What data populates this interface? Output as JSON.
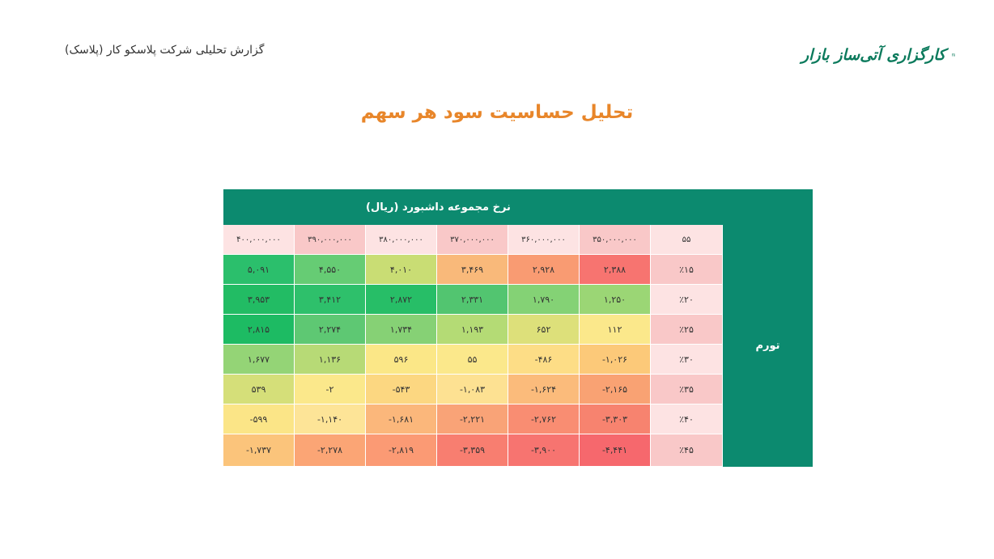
{
  "header": {
    "report_title": "گزارش تحلیلی شرکت پلاسکو کار (پلاسک)",
    "logo_text": "کارگزاری آتی‌ساز بازار"
  },
  "heading": "تحلیل حساسیت سود هر سهم",
  "table": {
    "column_group_label": "نرخ مجموعه داشبورد (ریال)",
    "row_group_label": "تورم",
    "corner_label": "۵۵",
    "columns": [
      "۴۰۰,۰۰۰,۰۰۰",
      "۳۹۰,۰۰۰,۰۰۰",
      "۳۸۰,۰۰۰,۰۰۰",
      "۳۷۰,۰۰۰,۰۰۰",
      "۳۶۰,۰۰۰,۰۰۰",
      "۳۵۰,۰۰۰,۰۰۰"
    ],
    "column_colors": [
      "#fde3e3",
      "#f9c8c8",
      "#fde3e3",
      "#f9c8c8",
      "#fde3e3",
      "#f9c8c8"
    ],
    "rows": [
      {
        "label": "٪۱۵",
        "values": [
          "۵,۰۹۱",
          "۴,۵۵۰",
          "۴,۰۱۰",
          "۳,۴۶۹",
          "۲,۹۲۸",
          "۲,۳۸۸"
        ],
        "colors": [
          "#2bbf6c",
          "#66cc74",
          "#c9dd74",
          "#f9b97a",
          "#f99b72",
          "#f77470"
        ],
        "label_color": "#f9c8c8"
      },
      {
        "label": "٪۲۰",
        "values": [
          "۳,۹۵۳",
          "۳,۴۱۲",
          "۲,۸۷۲",
          "۲,۳۳۱",
          "۱,۷۹۰",
          "۱,۲۵۰"
        ],
        "colors": [
          "#22bc64",
          "#2ec06b",
          "#27be67",
          "#52c570",
          "#84d275",
          "#9bd675"
        ],
        "label_color": "#fde3e3"
      },
      {
        "label": "٪۲۵",
        "values": [
          "۲,۸۱۵",
          "۲,۲۷۴",
          "۱,۷۳۴",
          "۱,۱۹۳",
          "۶۵۲",
          "۱۱۲"
        ],
        "colors": [
          "#1dbb63",
          "#5ec873",
          "#86d175",
          "#b4db75",
          "#dde07a",
          "#fbe88b"
        ],
        "label_color": "#f9c8c8"
      },
      {
        "label": "٪۳۰",
        "values": [
          "۱,۶۷۷",
          "۱,۱۳۶",
          "۵۹۶",
          "۵۵",
          "-۴۸۶",
          "-۱,۰۲۶"
        ],
        "colors": [
          "#94d476",
          "#b7da76",
          "#fbe787",
          "#fbe88b",
          "#fddd86",
          "#fcc979"
        ],
        "label_color": "#fde3e3"
      },
      {
        "label": "٪۳۵",
        "values": [
          "۵۳۹",
          "-۲",
          "-۵۴۳",
          "-۱,۰۸۳",
          "-۱,۶۲۴",
          "-۲,۱۶۵"
        ],
        "colors": [
          "#d5df79",
          "#fbe88b",
          "#fcd781",
          "#fde192",
          "#fbbb7b",
          "#f9a273"
        ],
        "label_color": "#f9c8c8"
      },
      {
        "label": "٪۴۰",
        "values": [
          "-۵۹۹",
          "-۱,۱۴۰",
          "-۱,۶۸۱",
          "-۲,۲۲۱",
          "-۲,۷۶۲",
          "-۳,۳۰۳"
        ],
        "colors": [
          "#fbe587",
          "#fde497",
          "#fbb77b",
          "#f9a377",
          "#f98d72",
          "#f7836f"
        ],
        "label_color": "#fde3e3"
      },
      {
        "label": "٪۴۵",
        "values": [
          "-۱,۷۳۷",
          "-۲,۲۷۸",
          "-۲,۸۱۹",
          "-۳,۳۵۹",
          "-۳,۹۰۰",
          "-۴,۴۴۱"
        ],
        "colors": [
          "#fbc47b",
          "#fba575",
          "#fb9a74",
          "#f87e70",
          "#f77470",
          "#f6686d"
        ],
        "label_color": "#f9c8c8"
      }
    ]
  },
  "colors": {
    "accent": "#e8862a",
    "table_header": "#0c8a6f"
  }
}
